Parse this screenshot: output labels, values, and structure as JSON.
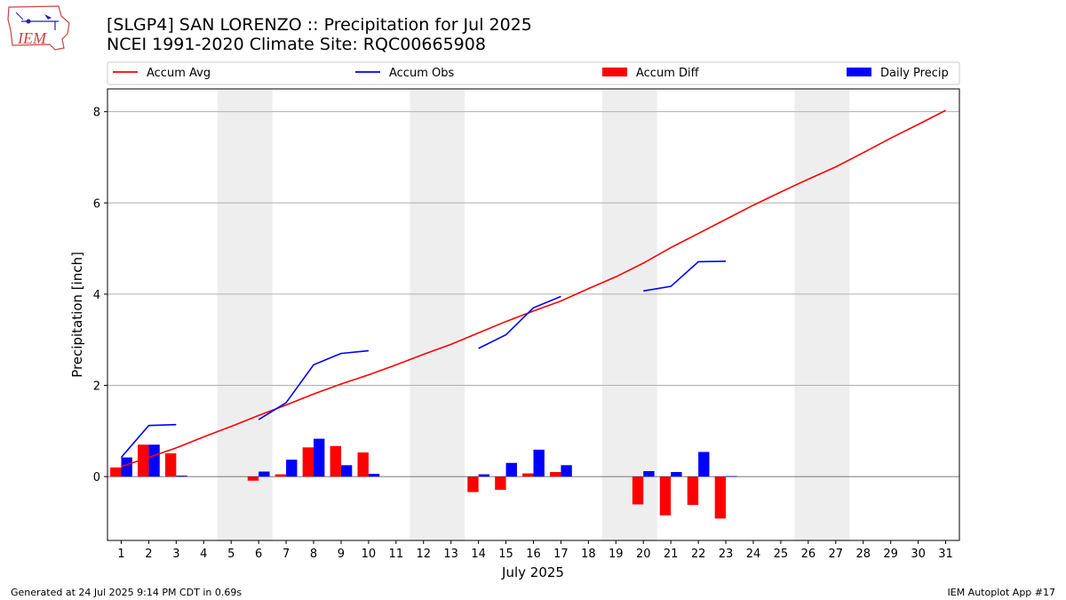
{
  "header": {
    "title_line1": "[SLGP4] SAN LORENZO :: Precipitation for Jul 2025",
    "title_line2": "NCEI 1991-2020 Climate Site: RQC00665908"
  },
  "logo": {
    "text": "IEM",
    "icon": "iem-logo"
  },
  "footer": {
    "generated": "Generated at 24 Jul 2025 9:14 PM CDT in 0.69s",
    "app": "IEM Autoplot App #17"
  },
  "colors": {
    "avg": "#ff0000",
    "obs": "#0000ff",
    "diff": "#ff0000",
    "daily": "#0000ff",
    "weekend": "#eeeeee",
    "grid": "#b0b0b0"
  },
  "chart_data": {
    "type": "bar+line",
    "xlabel": "July 2025",
    "ylabel": "Precipitation [inch]",
    "xlim": [
      0.5,
      31.5
    ],
    "ylim": [
      -1.4,
      8.5
    ],
    "yticks": [
      0,
      2,
      4,
      6,
      8
    ],
    "grid": "horizontal",
    "legend_placement": "top",
    "x": [
      1,
      2,
      3,
      4,
      5,
      6,
      7,
      8,
      9,
      10,
      11,
      12,
      13,
      14,
      15,
      16,
      17,
      18,
      19,
      20,
      21,
      22,
      23,
      24,
      25,
      26,
      27,
      28,
      29,
      30,
      31
    ],
    "weekend_days": [
      5,
      6,
      12,
      13,
      19,
      20,
      26,
      27
    ],
    "legend": [
      "Accum Avg",
      "Accum Obs",
      "Accum Diff",
      "Daily Precip"
    ],
    "series": [
      {
        "name": "Accum Avg",
        "kind": "line",
        "values": [
          0.22,
          0.42,
          0.63,
          0.87,
          1.1,
          1.34,
          1.57,
          1.81,
          2.03,
          2.23,
          2.45,
          2.68,
          2.9,
          3.15,
          3.4,
          3.63,
          3.85,
          4.12,
          4.38,
          4.68,
          5.02,
          5.33,
          5.64,
          5.95,
          6.24,
          6.52,
          6.79,
          7.1,
          7.42,
          7.72,
          8.03
        ]
      },
      {
        "name": "Accum Obs",
        "kind": "line",
        "values": [
          0.42,
          1.12,
          1.14,
          null,
          null,
          1.25,
          1.62,
          2.45,
          2.7,
          2.76,
          null,
          null,
          null,
          2.81,
          3.11,
          3.7,
          3.95,
          null,
          null,
          4.07,
          4.17,
          4.71,
          4.72,
          null,
          null,
          null,
          null,
          null,
          null,
          null,
          null
        ]
      },
      {
        "name": "Accum Diff",
        "kind": "bar",
        "values": [
          0.2,
          0.7,
          0.51,
          null,
          null,
          -0.09,
          0.05,
          0.64,
          0.67,
          0.53,
          null,
          null,
          null,
          -0.34,
          -0.29,
          0.07,
          0.1,
          null,
          null,
          -0.61,
          -0.85,
          -0.62,
          -0.92,
          null,
          null,
          null,
          null,
          null,
          null,
          null,
          null
        ]
      },
      {
        "name": "Daily Precip",
        "kind": "bar",
        "values": [
          0.42,
          0.7,
          0.02,
          null,
          null,
          0.11,
          0.37,
          0.83,
          0.25,
          0.06,
          null,
          null,
          null,
          0.05,
          0.3,
          0.59,
          0.25,
          null,
          null,
          0.12,
          0.1,
          0.54,
          0.01,
          null,
          null,
          null,
          null,
          null,
          null,
          null,
          null
        ]
      }
    ]
  }
}
